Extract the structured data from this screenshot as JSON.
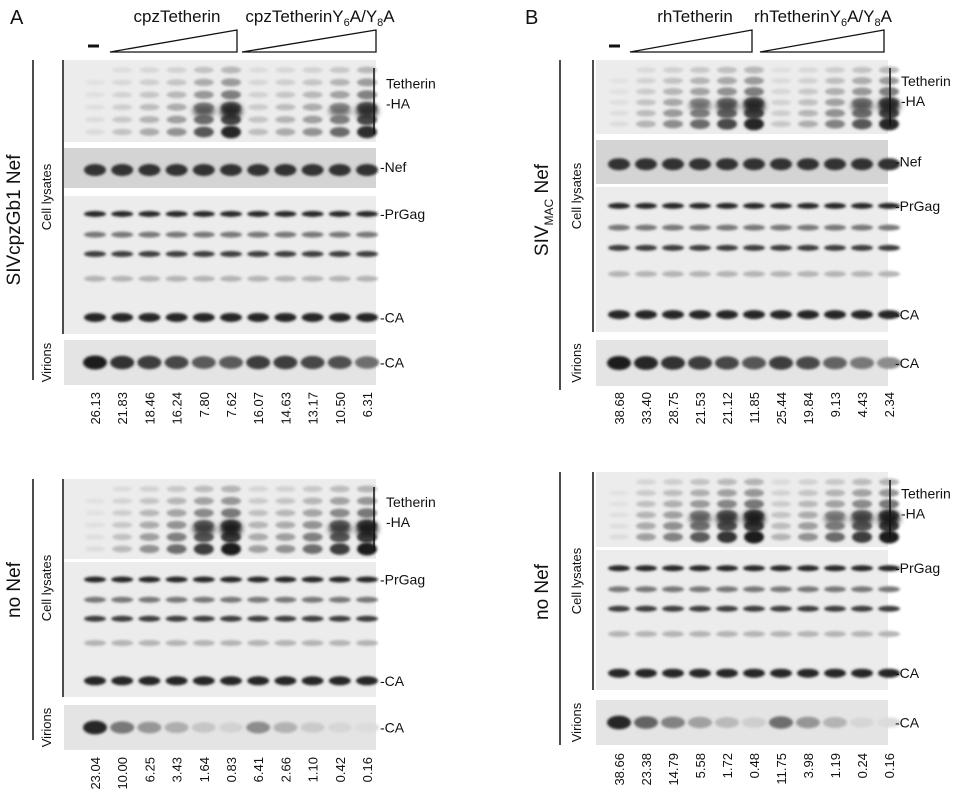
{
  "panels": [
    {
      "letter": "A",
      "construct_1": "cpzTetherin",
      "construct_2_base": "cpzTetherin",
      "construct_2_mut": [
        "Y",
        "6",
        "A/Y",
        "8",
        "A"
      ],
      "control_dash": "–",
      "blocks": [
        {
          "condition": "SIVcpzGb1 Nef",
          "condition_sub": "",
          "condition_suffix": "",
          "lysate_label": "Cell lysates",
          "virion_label": "Virions",
          "band_labels": {
            "tetherin_1": "Tetherin",
            "tetherin_2": "-HA",
            "nef": "-Nef",
            "prgag": "-PrGag",
            "ca_lysate": "-CA",
            "ca_virion": "-CA"
          },
          "values": [
            "26.13",
            "21.83",
            "18.46",
            "16.24",
            "7.80",
            "7.62",
            "16.07",
            "14.63",
            "13.17",
            "10.50",
            "6.31"
          ]
        },
        {
          "condition": "no Nef",
          "condition_sub": "",
          "condition_suffix": "",
          "lysate_label": "Cell lysates",
          "virion_label": "Virions",
          "band_labels": {
            "tetherin_1": "Tetherin",
            "tetherin_2": "-HA",
            "prgag": "-PrGag",
            "ca_lysate": "-CA",
            "ca_virion": "-CA"
          },
          "values": [
            "23.04",
            "10.00",
            "6.25",
            "3.43",
            "1.64",
            "0.83",
            "6.41",
            "2.66",
            "1.10",
            "0.42",
            "0.16"
          ]
        }
      ]
    },
    {
      "letter": "B",
      "construct_1": "rhTetherin",
      "construct_2_base": "rhTetherin",
      "construct_2_mut": [
        "Y",
        "6",
        "A/Y",
        "8",
        "A"
      ],
      "control_dash": "–",
      "blocks": [
        {
          "condition": "SIV",
          "condition_sub": "MAC",
          "condition_suffix": " Nef",
          "lysate_label": "Cell lysates",
          "virion_label": "Virions",
          "band_labels": {
            "tetherin_1": "Tetherin",
            "tetherin_2": "-HA",
            "nef": "-Nef",
            "prgag": "-PrGag",
            "ca_lysate": "-CA",
            "ca_virion": "-CA"
          },
          "values": [
            "38.68",
            "33.40",
            "28.75",
            "21.53",
            "21.12",
            "11.85",
            "25.44",
            "19.84",
            "9.13",
            "4.43",
            "2.34"
          ]
        },
        {
          "condition": "no Nef",
          "condition_sub": "",
          "condition_suffix": "",
          "lysate_label": "Cell lysates",
          "virion_label": "Virions",
          "band_labels": {
            "tetherin_1": "Tetherin",
            "tetherin_2": "-HA",
            "prgag": "-PrGag",
            "ca_lysate": "-CA",
            "ca_virion": "-CA"
          },
          "values": [
            "38.66",
            "23.38",
            "14.79",
            "5.58",
            "1.72",
            "0.48",
            "11.75",
            "3.98",
            "1.19",
            "0.24",
            "0.16"
          ]
        }
      ]
    }
  ]
}
